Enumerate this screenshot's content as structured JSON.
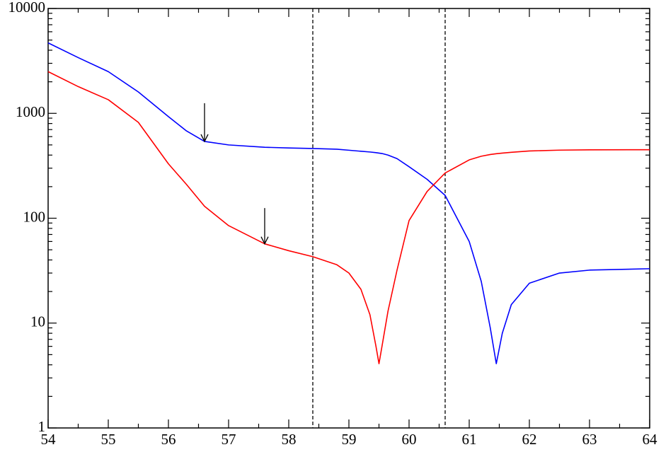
{
  "chart_data": {
    "type": "line",
    "x": [
      54,
      54.5,
      55,
      55.5,
      56,
      56.3,
      56.6,
      57,
      57.6,
      58,
      58.4,
      58.8,
      59,
      59.2,
      59.35,
      59.45,
      59.5,
      59.55,
      59.65,
      59.8,
      60,
      60.3,
      60.6,
      61,
      61.2,
      61.35,
      61.45,
      61.55,
      61.7,
      62,
      62.5,
      63,
      64
    ],
    "series": [
      {
        "color": "#0000ff",
        "values": [
          4700,
          3400,
          2500,
          1600,
          930,
          680,
          540,
          500,
          475,
          468,
          462,
          455,
          445,
          435,
          428,
          422,
          418,
          414,
          400,
          370,
          310,
          235,
          165,
          60,
          25,
          9,
          4.1,
          8,
          15,
          24,
          30,
          32,
          33
        ]
      },
      {
        "color": "#ff0000",
        "values": [
          2500,
          1800,
          1350,
          820,
          330,
          210,
          130,
          85,
          57,
          49,
          43,
          36,
          30,
          21,
          12,
          6,
          4.1,
          6,
          13,
          32,
          95,
          180,
          270,
          360,
          390,
          405,
          412,
          418,
          425,
          438,
          446,
          449,
          450
        ]
      }
    ],
    "vlines": [
      58.4,
      60.6
    ],
    "arrows": [
      {
        "x": 56.6,
        "y_start": 1250,
        "y_end": 540
      },
      {
        "x": 57.6,
        "y_start": 125,
        "y_end": 57
      }
    ],
    "xlim": [
      54,
      64
    ],
    "xticks": [
      54,
      55,
      56,
      57,
      58,
      59,
      60,
      61,
      62,
      63,
      64
    ],
    "ylim": [
      1,
      10000
    ],
    "yticks": [
      1,
      10,
      100,
      1000,
      10000
    ],
    "log_y": true,
    "minor_ticks": true
  }
}
